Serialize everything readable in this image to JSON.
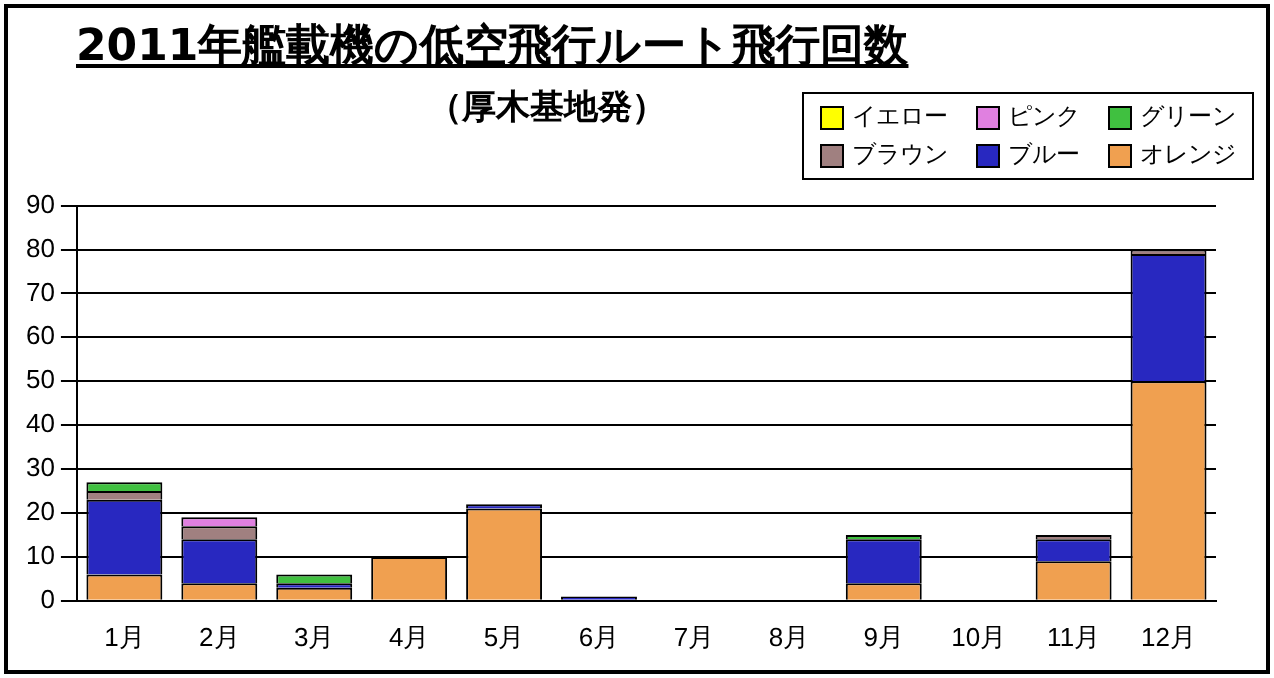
{
  "chart_data": {
    "type": "bar",
    "title": "2011年艦載機の低空飛行ルート飛行回数",
    "subtitle": "（厚木基地発）",
    "categories": [
      "1月",
      "2月",
      "3月",
      "4月",
      "5月",
      "6月",
      "7月",
      "8月",
      "9月",
      "10月",
      "11月",
      "12月"
    ],
    "stacked": true,
    "ylim": [
      0,
      90
    ],
    "yticks": [
      0,
      10,
      20,
      30,
      40,
      50,
      60,
      70,
      80,
      90
    ],
    "grid": "y",
    "legend": "top right",
    "series": [
      {
        "name": "オレンジ",
        "color": "#f0a050",
        "values": [
          6,
          4,
          3,
          10,
          21,
          0,
          0,
          0,
          4,
          0,
          9,
          50
        ]
      },
      {
        "name": "ブルー",
        "color": "#2828c0",
        "values": [
          17,
          10,
          1,
          0,
          1,
          1,
          0,
          0,
          10,
          0,
          5,
          29
        ]
      },
      {
        "name": "ブラウン",
        "color": "#a08080",
        "values": [
          2,
          3,
          0,
          0,
          0,
          0,
          0,
          0,
          0,
          0,
          1,
          1
        ]
      },
      {
        "name": "グリーン",
        "color": "#40c040",
        "values": [
          2,
          0,
          2,
          0,
          0,
          0,
          0,
          0,
          1,
          0,
          0,
          0
        ]
      },
      {
        "name": "ピンク",
        "color": "#e080e0",
        "values": [
          0,
          2,
          0,
          0,
          0,
          0,
          0,
          0,
          0,
          0,
          0,
          0
        ]
      },
      {
        "name": "イエロー",
        "color": "#ffff00",
        "values": [
          0,
          0,
          0,
          0,
          0,
          0,
          0,
          0,
          0,
          0,
          0,
          0
        ]
      }
    ]
  }
}
